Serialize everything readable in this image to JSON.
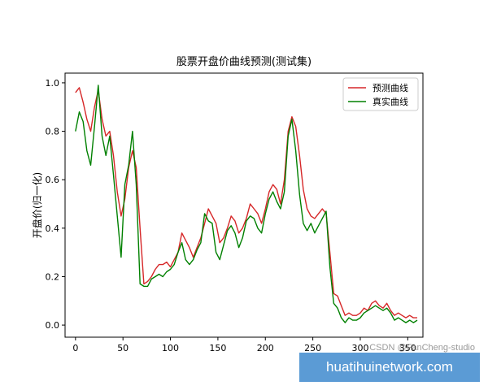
{
  "chart_data": {
    "type": "line",
    "title": "股票开盘价曲线预测(测试集)",
    "xlabel": "",
    "ylabel": "开盘价(归一化)",
    "xlim": [
      -11,
      366
    ],
    "ylim": [
      -0.05,
      1.04
    ],
    "xticks": [
      0,
      50,
      100,
      150,
      200,
      250,
      300,
      350
    ],
    "yticks": [
      0.0,
      0.2,
      0.4,
      0.6,
      0.8,
      1.0
    ],
    "ytick_labels": [
      "0.0",
      "0.2",
      "0.4",
      "0.6",
      "0.8",
      "1.0"
    ],
    "grid": false,
    "legend_position": "top-right",
    "series": [
      {
        "name": "预测曲线",
        "color": "#d62728",
        "x": [
          0,
          4,
          8,
          12,
          16,
          20,
          24,
          28,
          32,
          36,
          40,
          44,
          48,
          52,
          56,
          60,
          64,
          68,
          72,
          76,
          80,
          84,
          88,
          92,
          96,
          100,
          104,
          108,
          112,
          116,
          120,
          124,
          128,
          132,
          136,
          140,
          144,
          148,
          152,
          156,
          160,
          164,
          168,
          172,
          176,
          180,
          184,
          188,
          192,
          196,
          200,
          204,
          208,
          212,
          216,
          220,
          224,
          228,
          232,
          236,
          240,
          244,
          248,
          252,
          256,
          260,
          264,
          268,
          272,
          276,
          280,
          284,
          288,
          292,
          296,
          300,
          304,
          308,
          312,
          316,
          320,
          324,
          328,
          332,
          336,
          340,
          344,
          348,
          352,
          356,
          360
        ],
        "y": [
          0.96,
          0.98,
          0.92,
          0.85,
          0.8,
          0.9,
          0.97,
          0.85,
          0.78,
          0.8,
          0.7,
          0.55,
          0.45,
          0.52,
          0.65,
          0.72,
          0.65,
          0.4,
          0.17,
          0.18,
          0.2,
          0.23,
          0.25,
          0.25,
          0.26,
          0.24,
          0.27,
          0.3,
          0.38,
          0.35,
          0.32,
          0.28,
          0.32,
          0.36,
          0.42,
          0.48,
          0.45,
          0.42,
          0.34,
          0.36,
          0.4,
          0.45,
          0.43,
          0.38,
          0.4,
          0.44,
          0.5,
          0.48,
          0.46,
          0.42,
          0.48,
          0.55,
          0.58,
          0.56,
          0.5,
          0.6,
          0.8,
          0.86,
          0.82,
          0.7,
          0.56,
          0.48,
          0.45,
          0.44,
          0.46,
          0.48,
          0.46,
          0.3,
          0.13,
          0.12,
          0.08,
          0.04,
          0.05,
          0.04,
          0.04,
          0.05,
          0.07,
          0.06,
          0.09,
          0.1,
          0.08,
          0.07,
          0.09,
          0.06,
          0.04,
          0.05,
          0.04,
          0.03,
          0.04,
          0.03,
          0.03
        ]
      },
      {
        "name": "真实曲线",
        "color": "#008000",
        "x": [
          0,
          4,
          8,
          12,
          16,
          20,
          24,
          28,
          32,
          36,
          40,
          44,
          48,
          52,
          56,
          60,
          64,
          68,
          72,
          76,
          80,
          84,
          88,
          92,
          96,
          100,
          104,
          108,
          112,
          116,
          120,
          124,
          128,
          132,
          136,
          140,
          144,
          148,
          152,
          156,
          160,
          164,
          168,
          172,
          176,
          180,
          184,
          188,
          192,
          196,
          200,
          204,
          208,
          212,
          216,
          220,
          224,
          228,
          232,
          236,
          240,
          244,
          248,
          252,
          256,
          260,
          264,
          268,
          272,
          276,
          280,
          284,
          288,
          292,
          296,
          300,
          304,
          308,
          312,
          316,
          320,
          324,
          328,
          332,
          336,
          340,
          344,
          348,
          352,
          356,
          360
        ],
        "y": [
          0.8,
          0.88,
          0.84,
          0.72,
          0.66,
          0.82,
          0.99,
          0.78,
          0.7,
          0.78,
          0.62,
          0.45,
          0.28,
          0.58,
          0.66,
          0.8,
          0.58,
          0.17,
          0.16,
          0.16,
          0.19,
          0.2,
          0.21,
          0.2,
          0.22,
          0.23,
          0.25,
          0.3,
          0.34,
          0.27,
          0.25,
          0.27,
          0.31,
          0.34,
          0.46,
          0.43,
          0.42,
          0.3,
          0.27,
          0.33,
          0.39,
          0.41,
          0.38,
          0.32,
          0.36,
          0.43,
          0.45,
          0.44,
          0.4,
          0.38,
          0.46,
          0.52,
          0.55,
          0.51,
          0.48,
          0.55,
          0.78,
          0.85,
          0.72,
          0.54,
          0.42,
          0.39,
          0.42,
          0.38,
          0.41,
          0.44,
          0.47,
          0.24,
          0.09,
          0.07,
          0.03,
          0.01,
          0.03,
          0.02,
          0.02,
          0.03,
          0.05,
          0.06,
          0.07,
          0.08,
          0.07,
          0.06,
          0.07,
          0.05,
          0.02,
          0.03,
          0.02,
          0.01,
          0.02,
          0.01,
          0.02
        ]
      }
    ]
  },
  "watermark": "CSDN @FanCheng-studio",
  "footer_banner": "huatihuinetwork.com"
}
